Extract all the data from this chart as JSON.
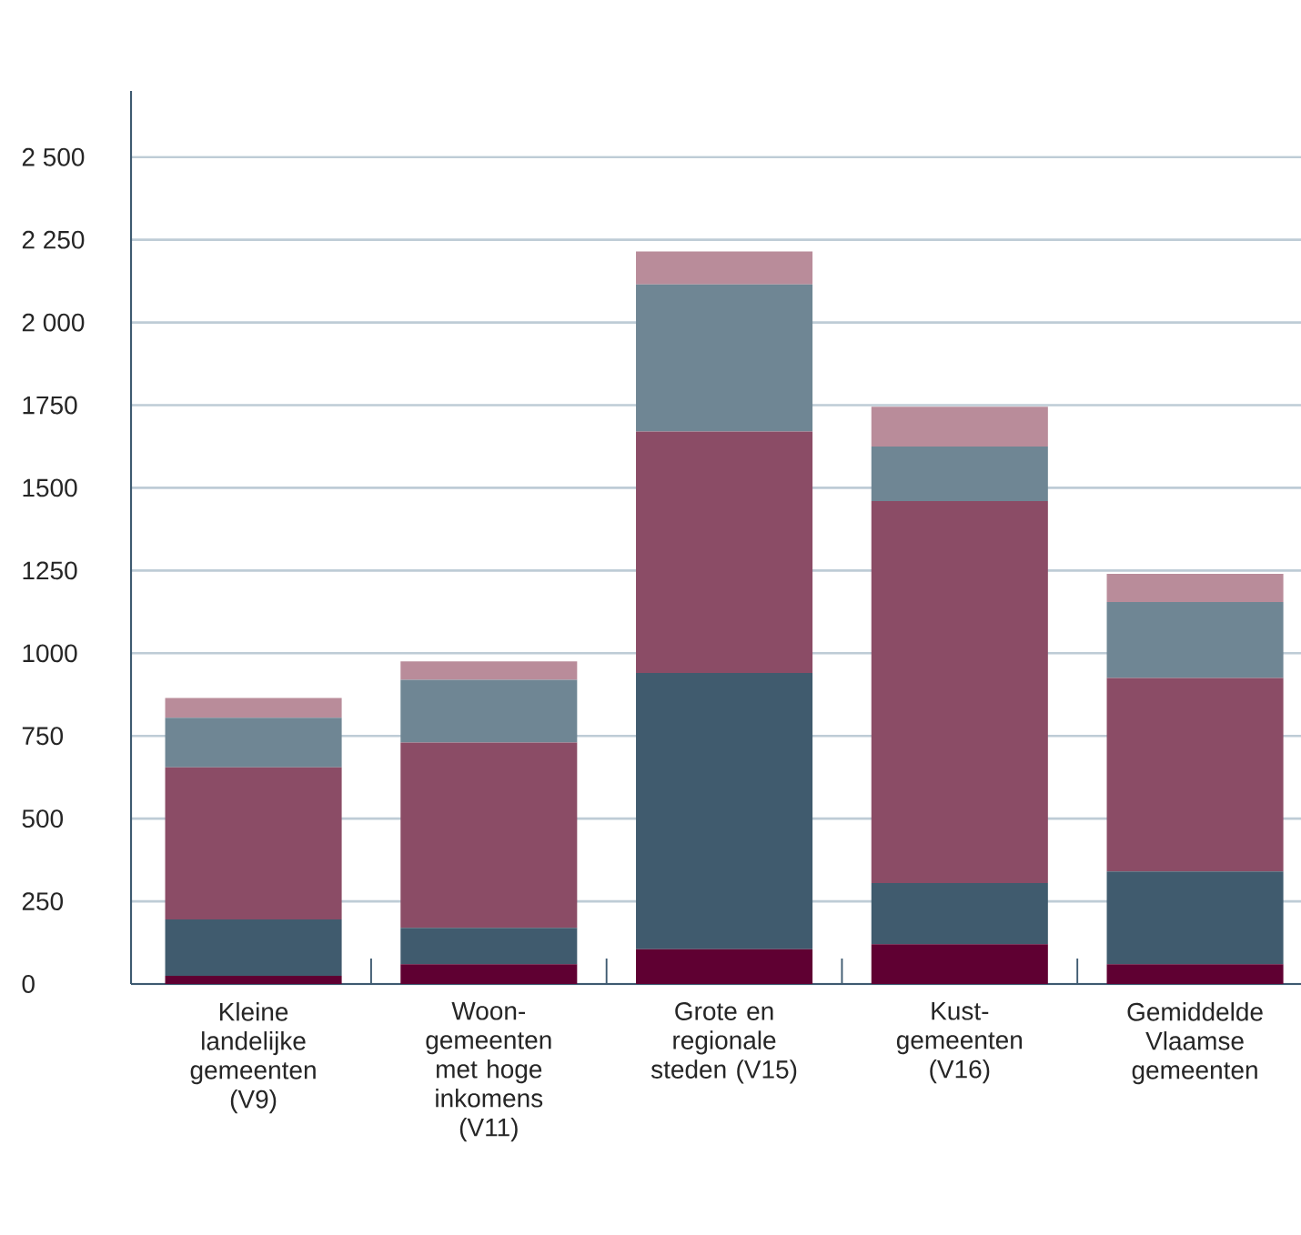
{
  "chart_data": {
    "type": "bar",
    "stacked": true,
    "categories": [
      "Kleine landelijke gemeenten (V9)",
      "Woon-gemeenten met hoge inkomens (V11)",
      "Grote en regionale steden (V15)",
      "Kust-gemeenten (V16)",
      "Gemiddelde Vlaamse gemeenten"
    ],
    "series": [
      {
        "color": "#5f0032",
        "values": [
          25,
          60,
          105,
          120,
          60
        ]
      },
      {
        "color": "#405b6e",
        "values": [
          170,
          110,
          835,
          185,
          280
        ]
      },
      {
        "color": "#8b4c66",
        "values": [
          460,
          560,
          730,
          1155,
          585
        ]
      },
      {
        "color": "#6f8694",
        "values": [
          150,
          190,
          445,
          165,
          230
        ]
      },
      {
        "color": "#b98c9a",
        "values": [
          60,
          55,
          100,
          120,
          85
        ]
      }
    ],
    "ylim": [
      0,
      2700
    ],
    "yticks": [
      0,
      250,
      500,
      750,
      1000,
      1250,
      1500,
      1750,
      {
        "value": 2000,
        "label": "2 000"
      },
      {
        "value": 2250,
        "label": "2 250"
      },
      {
        "value": 2500,
        "label": "2 500"
      }
    ],
    "grid": "y"
  }
}
